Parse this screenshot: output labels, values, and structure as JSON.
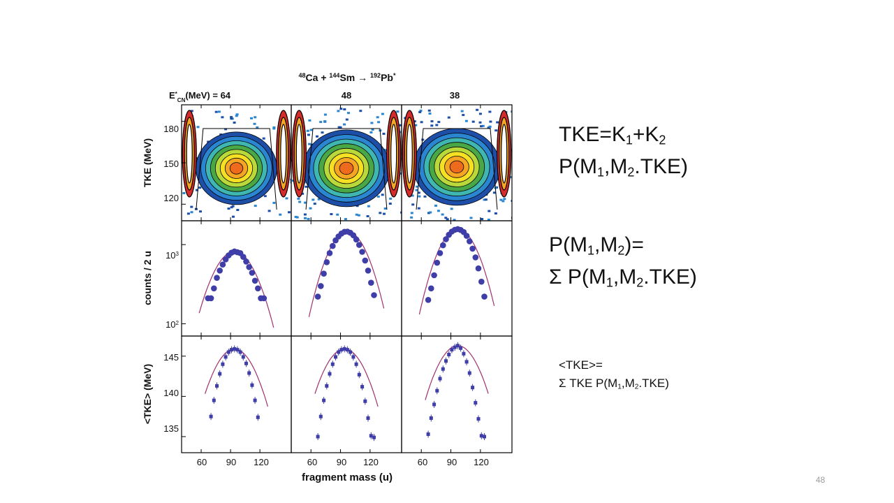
{
  "figure": {
    "reaction": {
      "a1": "48",
      "e1": "Ca",
      "plus": " + ",
      "a2": "144",
      "e2": "Sm",
      "arrow": " → ",
      "a3": "192",
      "e3": "Pb",
      "star": "*"
    },
    "ecn_label": {
      "E": "E",
      "star": "*",
      "sub": "CN",
      "rest": "(MeV) = 64"
    },
    "column_energies": [
      "48",
      "38"
    ],
    "row_labels": {
      "top": "TKE (MeV)",
      "middle": "counts / 2 u",
      "bottom": "<TKE> (MeV)"
    },
    "xlabel": "fragment mass (u)",
    "x_ticks": [
      "60",
      "90",
      "120"
    ],
    "tke_ticks": [
      "180",
      "150",
      "120"
    ],
    "counts_ticks": [
      {
        "base": "10",
        "exp": "3"
      },
      {
        "base": "10",
        "exp": "2"
      }
    ],
    "mean_ticks": [
      "145",
      "140",
      "135"
    ]
  },
  "equations": {
    "tke_sum": {
      "a": "TKE=K",
      "s1": "1",
      "b": "+K",
      "s2": "2"
    },
    "p_tke": {
      "a": "P(M",
      "s1": "1",
      "b": ",M",
      "s2": "2",
      "c": ".TKE)"
    },
    "pm_def": {
      "a": "P(M",
      "s1": "1",
      "b": ",M",
      "s2": "2",
      "c": ")="
    },
    "pm_sum": {
      "a": "Σ P(M",
      "s1": "1",
      "b": ",M",
      "s2": "2",
      "c": ".TKE)"
    },
    "mean_def": "<TKE>=",
    "mean_sum": {
      "a": "Σ TKE P(M",
      "s1": "1",
      "b": ",M",
      "s2": "2",
      "c": ".TKE)"
    }
  },
  "slide_number": "48",
  "colors": {
    "points": "#3f3ea8",
    "fit_line": "#a0306e",
    "contour": [
      "#1e4fa8",
      "#2a86d1",
      "#3fb6b0",
      "#49a845",
      "#b9d83a",
      "#f6e024",
      "#f5a623",
      "#ee6a1d"
    ]
  },
  "chart_data": [
    {
      "type": "heatmap",
      "ylabel": "TKE (MeV)",
      "xlabel": "fragment mass (u)",
      "columns": [
        {
          "ecn": "64",
          "peak": {
            "x": 96,
            "y": 146
          }
        },
        {
          "ecn": "48",
          "peak": {
            "x": 96,
            "y": 146
          }
        },
        {
          "ecn": "38",
          "peak": {
            "x": 96,
            "y": 147
          }
        }
      ],
      "xlim": [
        40,
        152
      ],
      "ylim": [
        108,
        192
      ]
    },
    {
      "type": "scatter",
      "ylabel": "counts / 2 u",
      "y_scale": "log",
      "ylim": [
        70,
        2000
      ],
      "xlim": [
        40,
        152
      ],
      "series": [
        {
          "ecn": "64",
          "x": [
            67,
            70,
            73,
            76,
            79,
            82,
            85,
            88,
            91,
            94,
            97,
            100,
            103,
            106,
            109,
            112,
            115,
            118,
            121,
            124
          ],
          "y": [
            210,
            210,
            280,
            380,
            470,
            560,
            650,
            730,
            790,
            820,
            800,
            780,
            700,
            610,
            520,
            440,
            350,
            280,
            210,
            210
          ]
        },
        {
          "ecn": "48",
          "x": [
            67,
            70,
            73,
            76,
            79,
            82,
            85,
            88,
            91,
            94,
            97,
            100,
            103,
            106,
            109,
            112,
            115,
            118,
            121,
            124
          ],
          "y": [
            220,
            300,
            430,
            600,
            780,
            960,
            1130,
            1270,
            1380,
            1450,
            1460,
            1410,
            1310,
            1160,
            990,
            810,
            630,
            470,
            330,
            230
          ]
        },
        {
          "ecn": "38",
          "x": [
            67,
            70,
            73,
            76,
            79,
            82,
            85,
            88,
            91,
            94,
            97,
            100,
            103,
            106,
            109,
            112,
            115,
            118,
            121,
            124
          ],
          "y": [
            200,
            280,
            410,
            590,
            780,
            980,
            1170,
            1330,
            1460,
            1540,
            1570,
            1530,
            1440,
            1290,
            1100,
            890,
            690,
            500,
            340,
            220
          ]
        }
      ]
    },
    {
      "type": "scatter",
      "ylabel": "<TKE> (MeV)",
      "ylim": [
        133,
        147.5
      ],
      "xlim": [
        40,
        152
      ],
      "series": [
        {
          "ecn": "64",
          "x": [
            70,
            73,
            76,
            79,
            82,
            85,
            88,
            91,
            94,
            97,
            100,
            103,
            106,
            109,
            112,
            115,
            118
          ],
          "y": [
            137.5,
            139.5,
            141.3,
            142.8,
            144.0,
            144.9,
            145.5,
            145.8,
            145.9,
            145.8,
            145.5,
            144.9,
            144.1,
            142.9,
            141.4,
            139.5,
            137.4
          ]
        },
        {
          "ecn": "48",
          "x": [
            67,
            70,
            73,
            76,
            79,
            82,
            85,
            88,
            91,
            94,
            97,
            100,
            103,
            106,
            109,
            112,
            115,
            118,
            121,
            124
          ],
          "y": [
            135.0,
            137.5,
            139.5,
            141.3,
            142.8,
            144.0,
            144.9,
            145.5,
            145.8,
            145.9,
            145.8,
            145.5,
            144.9,
            144.0,
            142.7,
            141.2,
            139.4,
            137.3,
            135.1,
            134.9
          ]
        },
        {
          "ecn": "38",
          "x": [
            67,
            70,
            73,
            76,
            79,
            82,
            85,
            88,
            91,
            94,
            97,
            100,
            103,
            106,
            109,
            112,
            115,
            118,
            121,
            124
          ],
          "y": [
            135.3,
            137.3,
            139.0,
            140.7,
            142.2,
            143.4,
            144.4,
            145.2,
            145.8,
            146.1,
            146.3,
            146.0,
            145.3,
            144.3,
            142.9,
            141.1,
            139.2,
            137.2,
            135.1,
            135.0
          ]
        }
      ]
    }
  ]
}
